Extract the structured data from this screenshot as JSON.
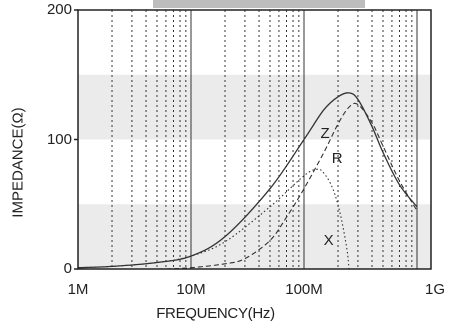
{
  "chart_data": {
    "type": "line",
    "title": "",
    "xlabel": "FREQUENCY(Hz)",
    "ylabel": "IMPEDANCE(Ω)",
    "xscale": "log",
    "xlim": [
      1000000,
      1000000000
    ],
    "ylim": [
      0,
      200
    ],
    "xticks": [
      {
        "value": 1000000,
        "label": "1M"
      },
      {
        "value": 10000000,
        "label": "10M"
      },
      {
        "value": 100000000,
        "label": "100M"
      },
      {
        "value": 1000000000,
        "label": "1G"
      }
    ],
    "yticks": [
      {
        "value": 0,
        "label": "0"
      },
      {
        "value": 100,
        "label": "100"
      },
      {
        "value": 200,
        "label": "200"
      }
    ],
    "shaded_bands": [
      [
        0,
        50
      ],
      [
        100,
        150
      ]
    ],
    "grid": true,
    "series": [
      {
        "name": "Z",
        "style": "solid",
        "x": [
          1000000,
          2000000,
          5000000,
          10000000,
          20000000,
          50000000,
          100000000,
          150000000,
          200000000,
          250000000,
          300000000,
          400000000,
          500000000,
          700000000,
          1000000000
        ],
        "values": [
          1,
          2,
          5,
          10,
          25,
          62,
          100,
          123,
          133,
          136,
          131,
          110,
          90,
          65,
          48
        ]
      },
      {
        "name": "R",
        "style": "dashed",
        "x": [
          1000000,
          5000000,
          10000000,
          20000000,
          30000000,
          50000000,
          70000000,
          100000000,
          150000000,
          200000000,
          250000000,
          300000000,
          400000000,
          500000000,
          700000000,
          1000000000
        ],
        "values": [
          0,
          0,
          1,
          4,
          8,
          22,
          40,
          62,
          90,
          112,
          125,
          127,
          113,
          95,
          68,
          45
        ]
      },
      {
        "name": "X",
        "style": "dotted",
        "x": [
          1000000,
          2000000,
          5000000,
          10000000,
          20000000,
          50000000,
          100000000,
          130000000,
          150000000,
          180000000,
          210000000,
          240000000,
          250000000
        ],
        "values": [
          1,
          2,
          5,
          10,
          21,
          48,
          72,
          77,
          74,
          62,
          42,
          15,
          0
        ]
      }
    ]
  }
}
